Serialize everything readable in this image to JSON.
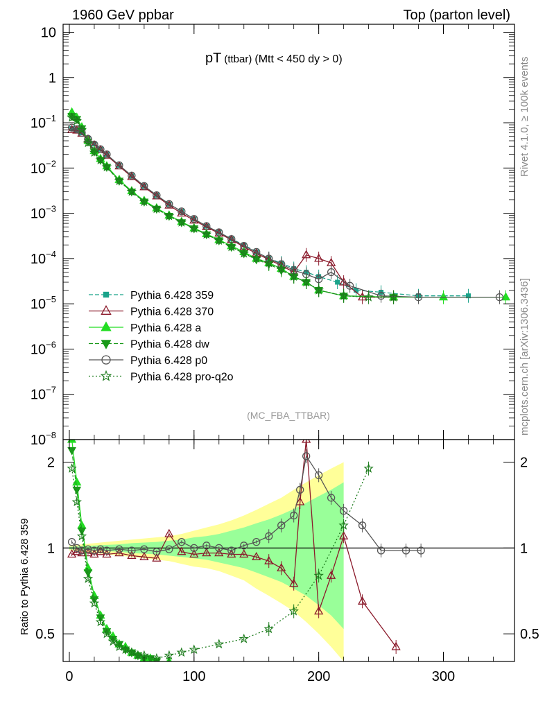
{
  "header": {
    "left": "1960 GeV ppbar",
    "right": "Top (parton level)"
  },
  "side_labels": {
    "rivet": "Rivet 4.1.0, ≥ 100k events",
    "mcplots": "mcplots.cern.ch [arXiv:1306.3436]"
  },
  "watermark": "(MC_FBA_TTBAR)",
  "colors": {
    "p359": "#1aa38a",
    "p370": "#8b1a2b",
    "a": "#22dd22",
    "dw": "#1a9a1a",
    "p0": "#555555",
    "proq2o": "#1a7a1a",
    "band_yellow": "#ffff99",
    "band_green": "#99ff99"
  },
  "chart_data": [
    {
      "type": "line",
      "panel": "main",
      "title": "pT",
      "title_sub": "(ttbar)",
      "title_cut": "(Mtt < 450 dy > 0)",
      "xlabel": "",
      "ylabel": "",
      "yscale": "log",
      "xlim": [
        -5,
        357
      ],
      "ylim": [
        1e-08,
        15
      ],
      "ytick_labels": [
        {
          "value": 10,
          "label": "10"
        },
        {
          "value": 1,
          "label": "1"
        },
        {
          "value": 0.1,
          "mant": "10",
          "exp": "−1"
        },
        {
          "value": 0.01,
          "mant": "10",
          "exp": "−2"
        },
        {
          "value": 0.001,
          "mant": "10",
          "exp": "−3"
        },
        {
          "value": 0.0001,
          "mant": "10",
          "exp": "−4"
        },
        {
          "value": 1e-05,
          "mant": "10",
          "exp": "−5"
        },
        {
          "value": 1e-06,
          "mant": "10",
          "exp": "−6"
        },
        {
          "value": 1e-07,
          "mant": "10",
          "exp": "−7"
        },
        {
          "value": 1e-08,
          "mant": "10",
          "exp": "−8"
        }
      ],
      "legend_position": "middle-left",
      "series": [
        {
          "key": "p359",
          "name": "Pythia 6.428 359",
          "marker": "square",
          "dash": "6,3",
          "x": [
            2,
            6,
            10,
            15,
            20,
            25,
            30,
            40,
            50,
            60,
            70,
            80,
            90,
            100,
            110,
            120,
            130,
            140,
            150,
            160,
            170,
            180,
            190,
            200,
            215,
            230,
            250,
            280,
            320
          ],
          "y": [
            0.075,
            0.07,
            0.06,
            0.045,
            0.034,
            0.026,
            0.02,
            0.0115,
            0.0067,
            0.004,
            0.0025,
            0.0016,
            0.0011,
            0.00075,
            0.00052,
            0.00038,
            0.00027,
            0.0002,
            0.00014,
            0.0001,
            8e-05,
            6e-05,
            5e-05,
            4e-05,
            3e-05,
            2e-05,
            1.8e-05,
            1.5e-05,
            1.5e-05
          ]
        },
        {
          "key": "p370",
          "name": "Pythia 6.428 370",
          "marker": "triangle-open",
          "dash": "",
          "x": [
            2,
            6,
            10,
            15,
            20,
            25,
            30,
            40,
            50,
            60,
            70,
            80,
            90,
            100,
            110,
            120,
            130,
            140,
            150,
            160,
            170,
            180,
            190,
            200,
            210,
            220,
            235,
            260
          ],
          "y": [
            0.07,
            0.068,
            0.058,
            0.043,
            0.032,
            0.025,
            0.019,
            0.011,
            0.0064,
            0.0038,
            0.0024,
            0.0015,
            0.001,
            0.0007,
            0.0005,
            0.00036,
            0.00026,
            0.00018,
            0.00013,
            9.5e-05,
            7e-05,
            5e-05,
            0.00012,
            0.0001,
            8e-05,
            3e-05,
            1.4e-05,
            1.4e-05
          ]
        },
        {
          "key": "a",
          "name": "Pythia 6.428 a",
          "marker": "triangle",
          "dash": "",
          "x": [
            2,
            6,
            10,
            15,
            20,
            25,
            30,
            40,
            50,
            60,
            70,
            80,
            90,
            100,
            110,
            120,
            130,
            140,
            150,
            160,
            170,
            180,
            190,
            200,
            220,
            260,
            300,
            350
          ],
          "y": [
            0.17,
            0.13,
            0.08,
            0.04,
            0.024,
            0.016,
            0.011,
            0.0055,
            0.0031,
            0.0019,
            0.0013,
            0.0009,
            0.00065,
            0.00047,
            0.00035,
            0.00026,
            0.00019,
            0.00014,
            0.0001,
            8e-05,
            6e-05,
            4e-05,
            3e-05,
            2e-05,
            1.5e-05,
            1.4e-05,
            1.4e-05,
            1.4e-05
          ]
        },
        {
          "key": "dw",
          "name": "Pythia 6.428 dw",
          "marker": "triangle-down",
          "dash": "6,3",
          "x": [
            2,
            6,
            10,
            15,
            20,
            25,
            30,
            40,
            50,
            60,
            70,
            80,
            90,
            100,
            110,
            120,
            130,
            140,
            150,
            160,
            170,
            180,
            190,
            200,
            220,
            260
          ],
          "y": [
            0.14,
            0.12,
            0.075,
            0.038,
            0.023,
            0.015,
            0.0105,
            0.0052,
            0.003,
            0.0018,
            0.00125,
            0.00087,
            0.00063,
            0.00046,
            0.00034,
            0.00025,
            0.00018,
            0.00013,
            9.5e-05,
            7.5e-05,
            5.5e-05,
            4e-05,
            3e-05,
            2e-05,
            1.5e-05,
            1.4e-05
          ]
        },
        {
          "key": "p0",
          "name": "Pythia 6.428 p0",
          "marker": "circle-open",
          "dash": "",
          "x": [
            2,
            6,
            10,
            15,
            20,
            25,
            30,
            40,
            50,
            60,
            70,
            80,
            90,
            100,
            110,
            120,
            130,
            140,
            150,
            160,
            170,
            180,
            190,
            200,
            210,
            225,
            250,
            280,
            345
          ],
          "y": [
            0.078,
            0.072,
            0.06,
            0.044,
            0.033,
            0.026,
            0.02,
            0.0115,
            0.0068,
            0.004,
            0.0025,
            0.0016,
            0.0011,
            0.00075,
            0.00052,
            0.00038,
            0.00027,
            0.00019,
            0.00014,
            0.0001,
            7.5e-05,
            5.5e-05,
            4.5e-05,
            3.5e-05,
            5e-05,
            2.5e-05,
            1.5e-05,
            1.4e-05,
            1.4e-05
          ]
        },
        {
          "key": "proq2o",
          "name": "Pythia 6.428 pro-q2o",
          "marker": "star",
          "dash": "2,3",
          "x": [
            2,
            6,
            10,
            15,
            20,
            25,
            30,
            40,
            50,
            60,
            70,
            80,
            90,
            100,
            110,
            120,
            130,
            140,
            150,
            160,
            170,
            180,
            190,
            200,
            220,
            240,
            260
          ],
          "y": [
            0.13,
            0.11,
            0.07,
            0.036,
            0.022,
            0.015,
            0.0105,
            0.0052,
            0.003,
            0.0018,
            0.00125,
            0.00087,
            0.00063,
            0.00046,
            0.00034,
            0.00025,
            0.00018,
            0.00013,
            0.0001,
            8e-05,
            6e-05,
            4e-05,
            3e-05,
            2e-05,
            1.5e-05,
            1.4e-05,
            1.4e-05
          ]
        }
      ]
    },
    {
      "type": "line",
      "panel": "ratio",
      "xlabel": "",
      "ylabel": "Ratio to Pythia 6.428 359",
      "yscale": "log",
      "xlim": [
        -5,
        357
      ],
      "ylim": [
        0.4,
        2.4
      ],
      "xtick_labels": [
        {
          "value": 0,
          "label": "0"
        },
        {
          "value": 100,
          "label": "100"
        },
        {
          "value": 200,
          "label": "200"
        },
        {
          "value": 300,
          "label": "300"
        }
      ],
      "ytick_labels": [
        {
          "value": 0.5,
          "label": "0.5"
        },
        {
          "value": 1,
          "label": "1"
        },
        {
          "value": 2,
          "label": "2"
        }
      ],
      "reference_line": 1,
      "band_yellow": {
        "x": [
          0,
          10,
          20,
          30,
          40,
          50,
          60,
          70,
          80,
          90,
          100,
          110,
          120,
          130,
          140,
          150,
          160,
          170,
          180,
          190,
          200,
          210,
          220
        ],
        "lo": [
          0.98,
          0.97,
          0.96,
          0.95,
          0.94,
          0.93,
          0.92,
          0.91,
          0.9,
          0.88,
          0.86,
          0.85,
          0.83,
          0.8,
          0.77,
          0.72,
          0.68,
          0.64,
          0.6,
          0.55,
          0.5,
          0.45,
          0.4
        ],
        "hi": [
          1.02,
          1.03,
          1.04,
          1.05,
          1.06,
          1.07,
          1.08,
          1.09,
          1.1,
          1.12,
          1.15,
          1.18,
          1.21,
          1.25,
          1.3,
          1.36,
          1.43,
          1.5,
          1.6,
          1.7,
          1.8,
          1.9,
          2.0
        ]
      },
      "band_green": {
        "x": [
          0,
          10,
          20,
          30,
          40,
          50,
          60,
          70,
          80,
          90,
          100,
          110,
          120,
          130,
          140,
          150,
          160,
          170,
          180,
          190,
          200,
          210,
          220
        ],
        "lo": [
          0.99,
          0.985,
          0.98,
          0.975,
          0.97,
          0.96,
          0.955,
          0.95,
          0.94,
          0.93,
          0.92,
          0.91,
          0.89,
          0.87,
          0.85,
          0.82,
          0.79,
          0.76,
          0.72,
          0.68,
          0.63,
          0.58,
          0.52
        ],
        "hi": [
          1.01,
          1.015,
          1.02,
          1.025,
          1.03,
          1.04,
          1.045,
          1.05,
          1.06,
          1.07,
          1.09,
          1.1,
          1.12,
          1.15,
          1.18,
          1.22,
          1.26,
          1.31,
          1.37,
          1.44,
          1.52,
          1.6,
          1.7
        ]
      },
      "series": [
        {
          "key": "p370",
          "name": "Pythia 6.428 370",
          "marker": "triangle-open",
          "dash": "",
          "x": [
            2,
            6,
            10,
            15,
            20,
            25,
            30,
            40,
            50,
            60,
            70,
            80,
            90,
            100,
            110,
            120,
            130,
            140,
            150,
            160,
            170,
            180,
            185,
            190,
            200,
            210,
            220,
            235,
            262
          ],
          "y": [
            0.95,
            0.97,
            0.96,
            0.96,
            0.95,
            0.97,
            0.95,
            0.96,
            0.94,
            0.93,
            0.92,
            1.12,
            0.97,
            0.95,
            0.96,
            0.96,
            0.95,
            0.95,
            0.93,
            0.9,
            0.85,
            0.75,
            1.45,
            2.4,
            0.6,
            0.8,
            1.1,
            0.65,
            0.45
          ]
        },
        {
          "key": "a",
          "name": "Pythia 6.428 a",
          "marker": "triangle",
          "dash": "",
          "x": [
            2,
            6,
            10,
            15,
            20,
            25,
            30,
            35,
            40,
            45,
            50,
            55,
            60,
            65,
            70,
            80
          ],
          "y": [
            2.4,
            1.7,
            1.2,
            0.85,
            0.68,
            0.58,
            0.52,
            0.49,
            0.46,
            0.45,
            0.43,
            0.42,
            0.41,
            0.41,
            0.4,
            0.4
          ]
        },
        {
          "key": "dw",
          "name": "Pythia 6.428 dw",
          "marker": "triangle-down",
          "dash": "6,3",
          "x": [
            2,
            6,
            10,
            15,
            20,
            25,
            30,
            35,
            40,
            45,
            50,
            55,
            60,
            65,
            70
          ],
          "y": [
            2.2,
            1.6,
            1.15,
            0.82,
            0.66,
            0.57,
            0.51,
            0.48,
            0.46,
            0.44,
            0.43,
            0.42,
            0.41,
            0.41,
            0.4
          ]
        },
        {
          "key": "p0",
          "name": "Pythia 6.428 p0",
          "marker": "circle-open",
          "dash": "",
          "x": [
            2,
            6,
            10,
            15,
            20,
            25,
            30,
            40,
            50,
            60,
            70,
            80,
            90,
            100,
            110,
            120,
            130,
            140,
            150,
            160,
            170,
            180,
            185,
            190,
            200,
            210,
            220,
            235,
            250,
            270,
            282
          ],
          "y": [
            1.05,
            1.0,
            0.98,
            0.99,
            0.98,
            0.99,
            0.98,
            0.99,
            0.98,
            0.99,
            0.97,
            0.99,
            1.05,
            1.0,
            1.02,
            1.0,
            0.98,
            1.02,
            1.05,
            1.1,
            1.2,
            1.3,
            1.6,
            2.1,
            1.8,
            1.5,
            1.35,
            1.2,
            0.98,
            0.98,
            0.98
          ]
        },
        {
          "key": "proq2o",
          "name": "Pythia 6.428 pro-q2o",
          "marker": "star",
          "dash": "2,3",
          "x": [
            2,
            6,
            10,
            15,
            20,
            25,
            30,
            35,
            40,
            45,
            50,
            55,
            60,
            70,
            80,
            90,
            100,
            120,
            140,
            160,
            180,
            200,
            220,
            240
          ],
          "y": [
            1.9,
            1.45,
            1.1,
            0.78,
            0.64,
            0.55,
            0.5,
            0.47,
            0.45,
            0.44,
            0.43,
            0.42,
            0.42,
            0.41,
            0.42,
            0.43,
            0.44,
            0.46,
            0.48,
            0.52,
            0.6,
            0.8,
            1.2,
            1.9
          ]
        }
      ]
    }
  ]
}
